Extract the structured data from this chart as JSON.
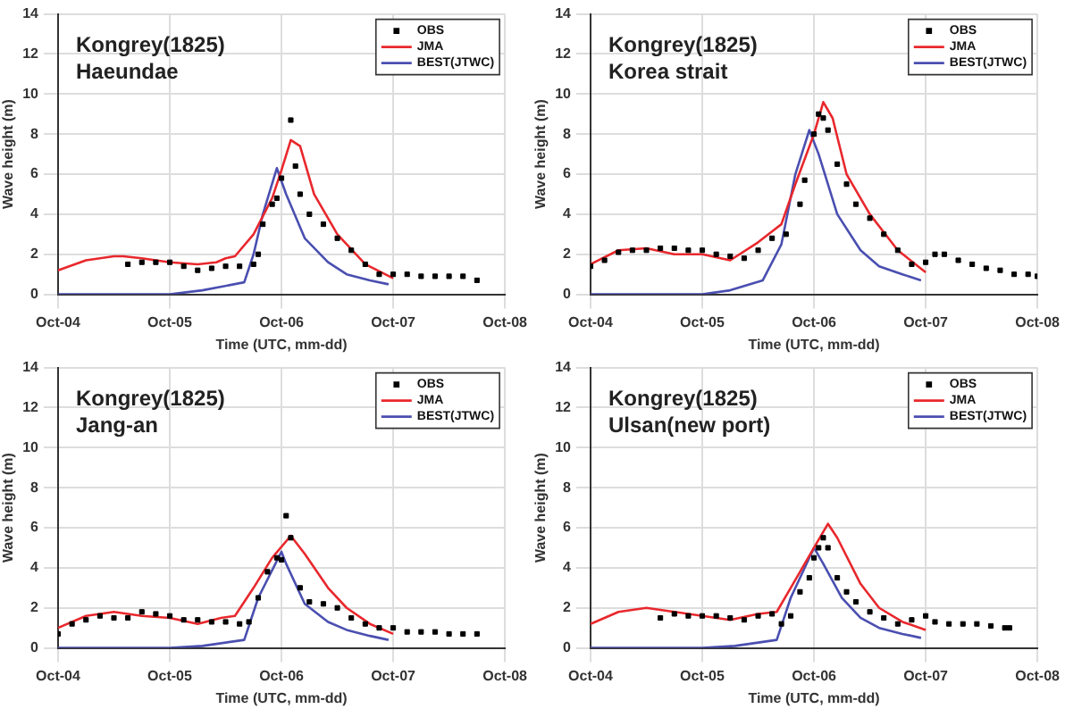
{
  "chart_data": [
    {
      "type": "line",
      "title": "Kongrey(1825)",
      "subtitle": "Haeundae",
      "xlabel": "Time (UTC, mm-dd)",
      "ylabel": "Wave height (m)",
      "xlim": [
        "--10-04",
        "--10-08"
      ],
      "xticks": [
        {
          "value": "--10-04",
          "label": "Oct-04"
        },
        {
          "value": "--10-05",
          "label": "Oct-05"
        },
        {
          "value": "--10-06",
          "label": "Oct-06"
        },
        {
          "value": "--10-07",
          "label": "Oct-07"
        },
        {
          "value": "--10-08",
          "label": "Oct-08"
        }
      ],
      "ylim": [
        0,
        14
      ],
      "yticks": [
        0,
        2,
        4,
        6,
        8,
        10,
        12,
        14
      ],
      "grid": true,
      "legend": "top right",
      "series": [
        {
          "name": "OBS",
          "type": "scatter",
          "marker": "square",
          "color": "#000000",
          "x": [
            "--10-04T15:00",
            "--10-04T18:00",
            "--10-04T21:00",
            "--10-05T00:00",
            "--10-05T03:00",
            "--10-05T06:00",
            "--10-05T09:00",
            "--10-05T12:00",
            "--10-05T15:00",
            "--10-05T18:00",
            "--10-05T19:00",
            "--10-05T20:00",
            "--10-05T22:00",
            "--10-05T23:00",
            "--10-06T00:00",
            "--10-06T02:00",
            "--10-06T03:00",
            "--10-06T04:00",
            "--10-06T06:00",
            "--10-06T09:00",
            "--10-06T12:00",
            "--10-06T15:00",
            "--10-06T18:00",
            "--10-06T21:00",
            "--10-07T00:00",
            "--10-07T03:00",
            "--10-07T06:00",
            "--10-07T09:00",
            "--10-07T12:00",
            "--10-07T15:00",
            "--10-07T18:00"
          ],
          "values": [
            1.5,
            1.6,
            1.6,
            1.6,
            1.4,
            1.2,
            1.3,
            1.4,
            1.4,
            1.5,
            2.0,
            3.5,
            4.5,
            4.8,
            5.8,
            8.7,
            6.4,
            5.0,
            4.0,
            3.5,
            2.8,
            2.2,
            1.5,
            1.0,
            1.0,
            1.0,
            0.9,
            0.9,
            0.9,
            0.9,
            0.7
          ]
        },
        {
          "name": "JMA",
          "type": "line",
          "color": "#e8282d",
          "x": [
            "--10-04T00:00",
            "--10-04T06:00",
            "--10-04T12:00",
            "--10-04T14:00",
            "--10-04T18:00",
            "--10-05T00:00",
            "--10-05T06:00",
            "--10-05T10:00",
            "--10-05T12:00",
            "--10-05T14:00",
            "--10-05T18:00",
            "--10-05T22:00",
            "--10-06T00:00",
            "--10-06T02:00",
            "--10-06T04:00",
            "--10-06T07:00",
            "--10-06T12:00",
            "--10-06T18:00",
            "--10-07T00:00"
          ],
          "values": [
            1.2,
            1.7,
            1.9,
            1.9,
            1.8,
            1.6,
            1.5,
            1.6,
            1.8,
            1.9,
            3.0,
            4.8,
            6.2,
            7.7,
            7.4,
            5.0,
            3.0,
            1.5,
            0.8
          ]
        },
        {
          "name": "BEST(JTWC)",
          "type": "line",
          "color": "#4a4fb0",
          "x": [
            "--10-04T00:00",
            "--10-05T00:00",
            "--10-05T07:00",
            "--10-05T16:00",
            "--10-05T18:00",
            "--10-05T20:00",
            "--10-05T23:00",
            "--10-06T01:00",
            "--10-06T05:00",
            "--10-06T10:00",
            "--10-06T14:00",
            "--10-06T19:00",
            "--10-06T23:00"
          ],
          "values": [
            0,
            0,
            0.2,
            0.6,
            2,
            4,
            6.3,
            5.0,
            2.8,
            1.6,
            1.0,
            0.7,
            0.5
          ]
        }
      ]
    },
    {
      "type": "line",
      "title": "Kongrey(1825)",
      "subtitle": "Korea strait",
      "xlabel": "Time (UTC, mm-dd)",
      "ylabel": "Wave height (m)",
      "xlim": [
        "--10-04",
        "--10-08"
      ],
      "xticks": [
        {
          "value": "--10-04",
          "label": "Oct-04"
        },
        {
          "value": "--10-05",
          "label": "Oct-05"
        },
        {
          "value": "--10-06",
          "label": "Oct-06"
        },
        {
          "value": "--10-07",
          "label": "Oct-07"
        },
        {
          "value": "--10-08",
          "label": "Oct-08"
        }
      ],
      "ylim": [
        0,
        14
      ],
      "yticks": [
        0,
        2,
        4,
        6,
        8,
        10,
        12,
        14
      ],
      "grid": true,
      "legend": "top right",
      "series": [
        {
          "name": "OBS",
          "type": "scatter",
          "marker": "square",
          "color": "#000000",
          "x": [
            "--10-04T00:00",
            "--10-04T03:00",
            "--10-04T06:00",
            "--10-04T09:00",
            "--10-04T12:00",
            "--10-04T15:00",
            "--10-04T18:00",
            "--10-04T21:00",
            "--10-05T00:00",
            "--10-05T03:00",
            "--10-05T06:00",
            "--10-05T09:00",
            "--10-05T12:00",
            "--10-05T15:00",
            "--10-05T18:00",
            "--10-05T21:00",
            "--10-05T22:00",
            "--10-06T00:00",
            "--10-06T01:00",
            "--10-06T02:00",
            "--10-06T03:00",
            "--10-06T05:00",
            "--10-06T07:00",
            "--10-06T09:00",
            "--10-06T12:00",
            "--10-06T15:00",
            "--10-06T18:00",
            "--10-06T21:00",
            "--10-07T00:00",
            "--10-07T02:00",
            "--10-07T04:00",
            "--10-07T07:00",
            "--10-07T10:00",
            "--10-07T13:00",
            "--10-07T16:00",
            "--10-07T19:00",
            "--10-07T22:00",
            "--10-08T00:00"
          ],
          "values": [
            1.4,
            1.7,
            2.1,
            2.2,
            2.2,
            2.3,
            2.3,
            2.2,
            2.2,
            2.0,
            1.9,
            1.8,
            2.2,
            2.8,
            3.0,
            4.5,
            5.7,
            8.0,
            9.0,
            8.8,
            8.2,
            6.5,
            5.5,
            4.5,
            3.8,
            3.0,
            2.2,
            1.5,
            1.6,
            2.0,
            2.0,
            1.7,
            1.5,
            1.3,
            1.2,
            1.0,
            1.0,
            0.9
          ]
        },
        {
          "name": "JMA",
          "type": "line",
          "color": "#e8282d",
          "x": [
            "--10-04T00:00",
            "--10-04T06:00",
            "--10-04T12:00",
            "--10-04T18:00",
            "--10-05T00:00",
            "--10-05T06:00",
            "--10-05T12:00",
            "--10-05T17:00",
            "--10-05T20:00",
            "--10-06T00:00",
            "--10-06T02:00",
            "--10-06T04:00",
            "--10-06T07:00",
            "--10-06T12:00",
            "--10-06T18:00",
            "--10-07T00:00"
          ],
          "values": [
            1.5,
            2.2,
            2.3,
            2.0,
            2.0,
            1.7,
            2.6,
            3.5,
            5.5,
            8.0,
            9.6,
            8.8,
            6.0,
            4.0,
            2.2,
            1.1
          ]
        },
        {
          "name": "BEST(JTWC)",
          "type": "line",
          "color": "#4a4fb0",
          "x": [
            "--10-04T00:00",
            "--10-05T00:00",
            "--10-05T06:00",
            "--10-05T13:00",
            "--10-05T17:00",
            "--10-05T20:00",
            "--10-05T23:00",
            "--10-06T01:00",
            "--10-06T05:00",
            "--10-06T10:00",
            "--10-06T14:00",
            "--10-06T19:00",
            "--10-06T23:00"
          ],
          "values": [
            0,
            0,
            0.2,
            0.7,
            2.5,
            6,
            8.2,
            7.0,
            4.0,
            2.2,
            1.4,
            1.0,
            0.7
          ]
        }
      ]
    },
    {
      "type": "line",
      "title": "Kongrey(1825)",
      "subtitle": "Jang-an",
      "xlabel": "Time (UTC, mm-dd)",
      "ylabel": "Wave height (m)",
      "xlim": [
        "--10-04",
        "--10-08"
      ],
      "xticks": [
        {
          "value": "--10-04",
          "label": "Oct-04"
        },
        {
          "value": "--10-05",
          "label": "Oct-05"
        },
        {
          "value": "--10-06",
          "label": "Oct-06"
        },
        {
          "value": "--10-07",
          "label": "Oct-07"
        },
        {
          "value": "--10-08",
          "label": "Oct-08"
        }
      ],
      "ylim": [
        0,
        14
      ],
      "yticks": [
        0,
        2,
        4,
        6,
        8,
        10,
        12,
        14
      ],
      "grid": true,
      "legend": "top right",
      "series": [
        {
          "name": "OBS",
          "type": "scatter",
          "marker": "square",
          "color": "#000000",
          "x": [
            "--10-04T00:00",
            "--10-04T03:00",
            "--10-04T06:00",
            "--10-04T09:00",
            "--10-04T12:00",
            "--10-04T15:00",
            "--10-04T18:00",
            "--10-04T21:00",
            "--10-05T00:00",
            "--10-05T03:00",
            "--10-05T06:00",
            "--10-05T09:00",
            "--10-05T12:00",
            "--10-05T15:00",
            "--10-05T17:00",
            "--10-05T19:00",
            "--10-05T21:00",
            "--10-05T23:00",
            "--10-06T00:00",
            "--10-06T01:00",
            "--10-06T02:00",
            "--10-06T04:00",
            "--10-06T06:00",
            "--10-06T09:00",
            "--10-06T12:00",
            "--10-06T15:00",
            "--10-06T18:00",
            "--10-06T21:00",
            "--10-07T00:00",
            "--10-07T03:00",
            "--10-07T06:00",
            "--10-07T09:00",
            "--10-07T12:00",
            "--10-07T15:00",
            "--10-07T18:00"
          ],
          "values": [
            0.7,
            1.2,
            1.4,
            1.6,
            1.5,
            1.5,
            1.8,
            1.7,
            1.6,
            1.4,
            1.4,
            1.3,
            1.3,
            1.2,
            1.3,
            2.5,
            3.8,
            4.5,
            4.4,
            6.6,
            5.5,
            3.0,
            2.3,
            2.2,
            2.0,
            1.5,
            1.2,
            1.0,
            1.0,
            0.8,
            0.8,
            0.8,
            0.7,
            0.7,
            0.7
          ]
        },
        {
          "name": "JMA",
          "type": "line",
          "color": "#e8282d",
          "x": [
            "--10-04T00:00",
            "--10-04T06:00",
            "--10-04T12:00",
            "--10-04T18:00",
            "--10-05T00:00",
            "--10-05T06:00",
            "--10-05T11:00",
            "--10-05T14:00",
            "--10-05T18:00",
            "--10-05T22:00",
            "--10-06T02:00",
            "--10-06T05:00",
            "--10-06T10:00",
            "--10-06T14:00",
            "--10-06T19:00",
            "--10-07T00:00"
          ],
          "values": [
            1.0,
            1.6,
            1.8,
            1.6,
            1.5,
            1.2,
            1.5,
            1.6,
            3.0,
            4.5,
            5.6,
            4.7,
            3.0,
            2.0,
            1.2,
            0.7
          ]
        },
        {
          "name": "BEST(JTWC)",
          "type": "line",
          "color": "#4a4fb0",
          "x": [
            "--10-04T00:00",
            "--10-05T00:00",
            "--10-05T07:00",
            "--10-05T16:00",
            "--10-05T19:00",
            "--10-06T00:00",
            "--10-06T01:00",
            "--10-06T05:00",
            "--10-06T10:00",
            "--10-06T14:00",
            "--10-06T19:00",
            "--10-06T23:00"
          ],
          "values": [
            0,
            0,
            0.1,
            0.4,
            2.5,
            4.8,
            4.2,
            2.2,
            1.3,
            0.9,
            0.6,
            0.4
          ]
        }
      ]
    },
    {
      "type": "line",
      "title": "Kongrey(1825)",
      "subtitle": "Ulsan(new port)",
      "xlabel": "Time (UTC, mm-dd)",
      "ylabel": "Wave height (m)",
      "xlim": [
        "--10-04",
        "--10-08"
      ],
      "xticks": [
        {
          "value": "--10-04",
          "label": "Oct-04"
        },
        {
          "value": "--10-05",
          "label": "Oct-05"
        },
        {
          "value": "--10-06",
          "label": "Oct-06"
        },
        {
          "value": "--10-07",
          "label": "Oct-07"
        },
        {
          "value": "--10-08",
          "label": "Oct-08"
        }
      ],
      "ylim": [
        0,
        14
      ],
      "yticks": [
        0,
        2,
        4,
        6,
        8,
        10,
        12,
        14
      ],
      "grid": true,
      "legend": "top right",
      "series": [
        {
          "name": "OBS",
          "type": "scatter",
          "marker": "square",
          "color": "#000000",
          "x": [
            "--10-04T15:00",
            "--10-04T18:00",
            "--10-04T21:00",
            "--10-05T00:00",
            "--10-05T03:00",
            "--10-05T06:00",
            "--10-05T09:00",
            "--10-05T12:00",
            "--10-05T15:00",
            "--10-05T17:00",
            "--10-05T19:00",
            "--10-05T21:00",
            "--10-05T23:00",
            "--10-06T00:00",
            "--10-06T01:00",
            "--10-06T02:00",
            "--10-06T03:00",
            "--10-06T05:00",
            "--10-06T07:00",
            "--10-06T09:00",
            "--10-06T12:00",
            "--10-06T15:00",
            "--10-06T18:00",
            "--10-06T21:00",
            "--10-07T00:00",
            "--10-07T02:00",
            "--10-07T05:00",
            "--10-07T08:00",
            "--10-07T11:00",
            "--10-07T14:00",
            "--10-07T17:00",
            "--10-07T18:00"
          ],
          "values": [
            1.5,
            1.7,
            1.6,
            1.6,
            1.6,
            1.5,
            1.4,
            1.6,
            1.7,
            1.2,
            1.6,
            2.8,
            3.5,
            4.5,
            5.0,
            5.5,
            5.0,
            3.5,
            2.8,
            2.3,
            1.8,
            1.5,
            1.2,
            1.4,
            1.6,
            1.3,
            1.2,
            1.2,
            1.2,
            1.1,
            1.0,
            1.0
          ]
        },
        {
          "name": "JMA",
          "type": "line",
          "color": "#e8282d",
          "x": [
            "--10-04T00:00",
            "--10-04T06:00",
            "--10-04T12:00",
            "--10-04T18:00",
            "--10-05T00:00",
            "--10-05T06:00",
            "--10-05T12:00",
            "--10-05T16:00",
            "--10-05T19:00",
            "--10-06T00:00",
            "--10-06T03:00",
            "--10-06T05:00",
            "--10-06T10:00",
            "--10-06T14:00",
            "--10-06T19:00",
            "--10-07T00:00"
          ],
          "values": [
            1.2,
            1.8,
            2.0,
            1.8,
            1.6,
            1.4,
            1.7,
            1.8,
            3.0,
            5.0,
            6.2,
            5.5,
            3.2,
            2.0,
            1.3,
            0.9
          ]
        },
        {
          "name": "BEST(JTWC)",
          "type": "line",
          "color": "#4a4fb0",
          "x": [
            "--10-04T00:00",
            "--10-05T00:00",
            "--10-05T07:00",
            "--10-05T16:00",
            "--10-05T19:00",
            "--10-06T00:00",
            "--10-06T02:00",
            "--10-06T06:00",
            "--10-06T10:00",
            "--10-06T14:00",
            "--10-06T19:00",
            "--10-06T23:00"
          ],
          "values": [
            0,
            0,
            0.1,
            0.4,
            2.5,
            5.0,
            4.2,
            2.5,
            1.5,
            1.0,
            0.7,
            0.5
          ]
        }
      ]
    }
  ]
}
